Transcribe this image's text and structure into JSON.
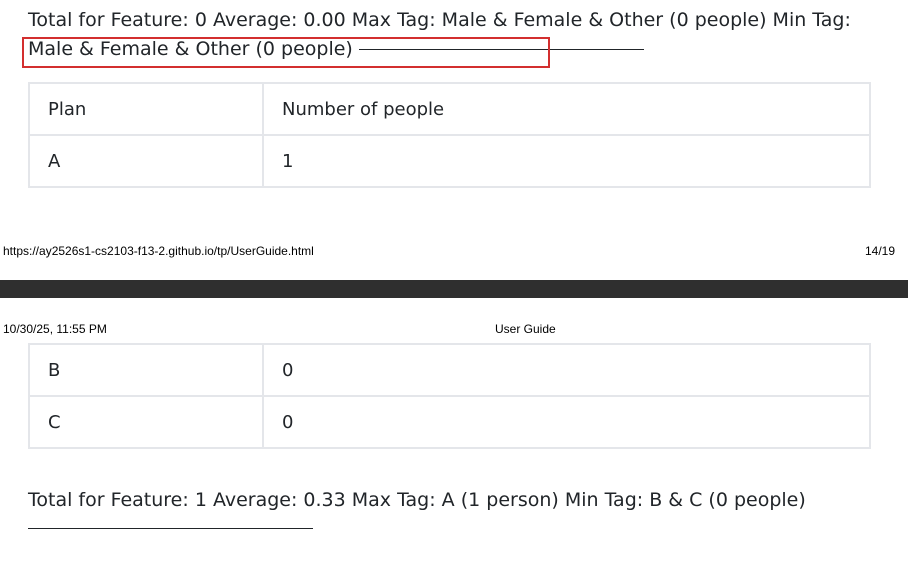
{
  "section_top": {
    "summary": "Total for Feature: 0 Average: 0.00 Max Tag: Male & Female & Other (0 people) Min Tag: Male & Female & Other (0 people)",
    "table": {
      "headers": [
        "Plan",
        "Number of people"
      ],
      "rows": [
        [
          "A",
          "1"
        ]
      ]
    }
  },
  "print_footer": {
    "url": "https://ay2526s1-cs2103-f13-2.github.io/tp/UserGuide.html",
    "page": "14/19"
  },
  "print_header": {
    "datetime": "10/30/25, 11:55 PM",
    "title": "User Guide"
  },
  "section_bottom": {
    "table": {
      "rows": [
        [
          "B",
          "0"
        ],
        [
          "C",
          "0"
        ]
      ]
    },
    "summary": "Total for Feature: 1 Average: 0.33 Max Tag: A (1 person) Min Tag: B & C (0 people)"
  },
  "colors": {
    "highlight_border": "#d32f2f",
    "page_separator": "#2f2f2f",
    "table_border": "#e4e6ea"
  }
}
